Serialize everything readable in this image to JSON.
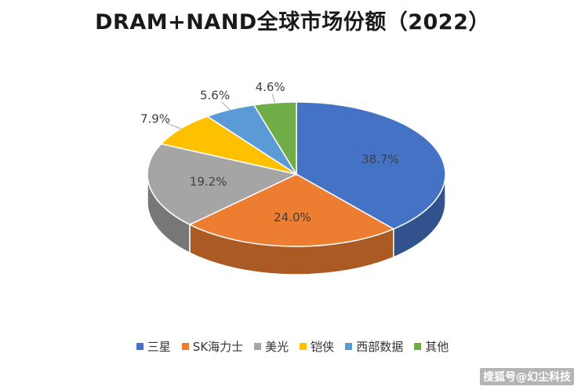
{
  "chart_data": {
    "type": "pie",
    "title": "DRAM+NAND全球市场份额（2022）",
    "categories": [
      "三星",
      "SK海力士",
      "美光",
      "铠侠",
      "西部数据",
      "其他"
    ],
    "values": [
      38.7,
      24.0,
      19.2,
      7.9,
      5.6,
      4.6
    ],
    "labels": [
      "38.7%",
      "24.0%",
      "19.2%",
      "7.9%",
      "5.6%",
      "4.6%"
    ],
    "colors": [
      "#4472C4",
      "#ED7D31",
      "#A5A5A5",
      "#FFC000",
      "#5B9BD5",
      "#70AD47"
    ],
    "legend_position": "bottom",
    "three_d": true
  },
  "watermark": "搜狐号@幻尘科技"
}
